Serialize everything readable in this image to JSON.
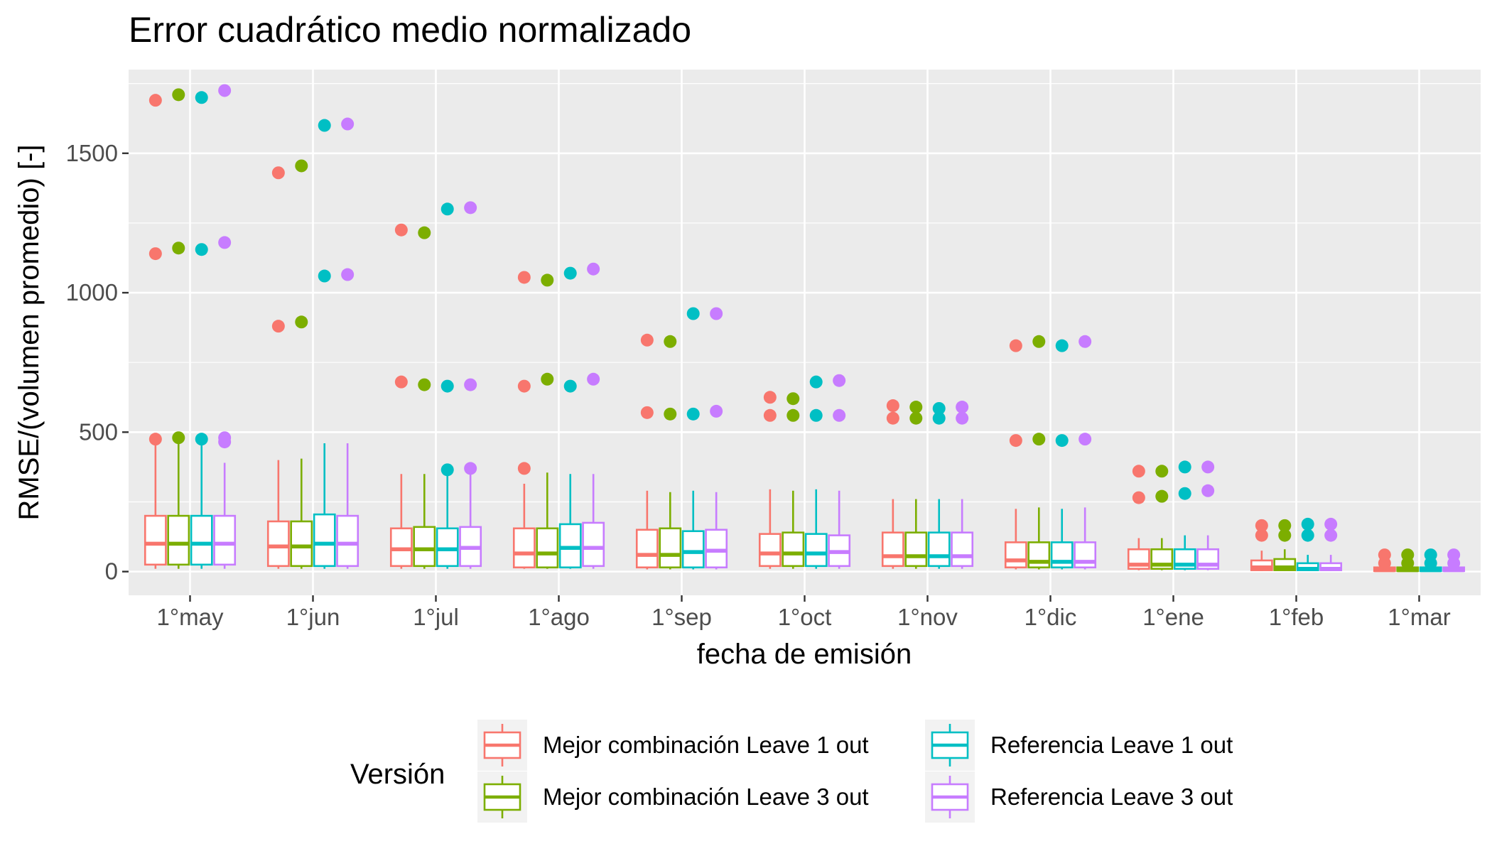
{
  "chart_data": {
    "type": "boxplot",
    "title": "Error cuadrático medio normalizado",
    "xlabel": "fecha de emisión",
    "ylabel": "RMSE/(volumen promedio) [-]",
    "ylim": [
      -85,
      1800
    ],
    "yticks": [
      0,
      500,
      1000,
      1500
    ],
    "categories": [
      "1°may",
      "1°jun",
      "1°jul",
      "1°ago",
      "1°sep",
      "1°oct",
      "1°nov",
      "1°dic",
      "1°ene",
      "1°feb",
      "1°mar"
    ],
    "grid": true,
    "legend": {
      "title": "Versión",
      "position": "bottom"
    },
    "series": [
      {
        "name": "Mejor combinación Leave 1 out",
        "color": "#F8766D",
        "boxes": [
          {
            "whisker_low": 10,
            "q1": 25,
            "median": 100,
            "q3": 200,
            "whisker_high": 475,
            "outliers": [
              475,
              1140,
              1690
            ]
          },
          {
            "whisker_low": 10,
            "q1": 20,
            "median": 90,
            "q3": 180,
            "whisker_high": 400,
            "outliers": [
              880,
              1430
            ]
          },
          {
            "whisker_low": 10,
            "q1": 20,
            "median": 80,
            "q3": 155,
            "whisker_high": 350,
            "outliers": [
              680,
              1225
            ]
          },
          {
            "whisker_low": 10,
            "q1": 15,
            "median": 65,
            "q3": 155,
            "whisker_high": 315,
            "outliers": [
              370,
              665,
              1055
            ]
          },
          {
            "whisker_low": 8,
            "q1": 15,
            "median": 60,
            "q3": 150,
            "whisker_high": 290,
            "outliers": [
              570,
              830
            ]
          },
          {
            "whisker_low": 10,
            "q1": 20,
            "median": 65,
            "q3": 135,
            "whisker_high": 295,
            "outliers": [
              560,
              625
            ]
          },
          {
            "whisker_low": 10,
            "q1": 20,
            "median": 55,
            "q3": 140,
            "whisker_high": 260,
            "outliers": [
              550,
              595
            ]
          },
          {
            "whisker_low": 8,
            "q1": 15,
            "median": 40,
            "q3": 105,
            "whisker_high": 225,
            "outliers": [
              470,
              810
            ]
          },
          {
            "whisker_low": 5,
            "q1": 10,
            "median": 25,
            "q3": 80,
            "whisker_high": 120,
            "outliers": [
              265,
              360
            ]
          },
          {
            "whisker_low": 2,
            "q1": 5,
            "median": 15,
            "q3": 40,
            "whisker_high": 75,
            "outliers": [
              130,
              165
            ]
          },
          {
            "whisker_low": 0,
            "q1": 2,
            "median": 5,
            "q3": 15,
            "whisker_high": 25,
            "outliers": [
              30,
              60
            ]
          }
        ]
      },
      {
        "name": "Mejor combinación Leave 3 out",
        "color": "#7CAE00",
        "boxes": [
          {
            "whisker_low": 10,
            "q1": 25,
            "median": 100,
            "q3": 200,
            "whisker_high": 480,
            "outliers": [
              480,
              1160,
              1710
            ]
          },
          {
            "whisker_low": 10,
            "q1": 20,
            "median": 90,
            "q3": 180,
            "whisker_high": 405,
            "outliers": [
              895,
              1455
            ]
          },
          {
            "whisker_low": 10,
            "q1": 20,
            "median": 80,
            "q3": 160,
            "whisker_high": 350,
            "outliers": [
              670,
              1215
            ]
          },
          {
            "whisker_low": 10,
            "q1": 15,
            "median": 65,
            "q3": 155,
            "whisker_high": 355,
            "outliers": [
              690,
              1045
            ]
          },
          {
            "whisker_low": 8,
            "q1": 15,
            "median": 60,
            "q3": 155,
            "whisker_high": 285,
            "outliers": [
              565,
              825
            ]
          },
          {
            "whisker_low": 10,
            "q1": 20,
            "median": 65,
            "q3": 140,
            "whisker_high": 290,
            "outliers": [
              560,
              620
            ]
          },
          {
            "whisker_low": 10,
            "q1": 20,
            "median": 55,
            "q3": 140,
            "whisker_high": 260,
            "outliers": [
              550,
              590
            ]
          },
          {
            "whisker_low": 8,
            "q1": 15,
            "median": 35,
            "q3": 105,
            "whisker_high": 230,
            "outliers": [
              475,
              825
            ]
          },
          {
            "whisker_low": 5,
            "q1": 10,
            "median": 25,
            "q3": 80,
            "whisker_high": 120,
            "outliers": [
              270,
              360
            ]
          },
          {
            "whisker_low": 2,
            "q1": 5,
            "median": 15,
            "q3": 45,
            "whisker_high": 80,
            "outliers": [
              130,
              165
            ]
          },
          {
            "whisker_low": 0,
            "q1": 2,
            "median": 5,
            "q3": 15,
            "whisker_high": 25,
            "outliers": [
              30,
              60
            ]
          }
        ]
      },
      {
        "name": "Referencia Leave 1 out",
        "color": "#00BFC4",
        "boxes": [
          {
            "whisker_low": 10,
            "q1": 25,
            "median": 100,
            "q3": 200,
            "whisker_high": 475,
            "outliers": [
              475,
              1155,
              1700
            ]
          },
          {
            "whisker_low": 10,
            "q1": 20,
            "median": 100,
            "q3": 205,
            "whisker_high": 460,
            "outliers": [
              1060,
              1600
            ]
          },
          {
            "whisker_low": 10,
            "q1": 20,
            "median": 80,
            "q3": 155,
            "whisker_high": 360,
            "outliers": [
              365,
              665,
              1300
            ]
          },
          {
            "whisker_low": 10,
            "q1": 15,
            "median": 85,
            "q3": 170,
            "whisker_high": 350,
            "outliers": [
              665,
              1070
            ]
          },
          {
            "whisker_low": 8,
            "q1": 15,
            "median": 70,
            "q3": 145,
            "whisker_high": 290,
            "outliers": [
              565,
              925
            ]
          },
          {
            "whisker_low": 10,
            "q1": 20,
            "median": 65,
            "q3": 135,
            "whisker_high": 295,
            "outliers": [
              560,
              680
            ]
          },
          {
            "whisker_low": 10,
            "q1": 20,
            "median": 55,
            "q3": 140,
            "whisker_high": 260,
            "outliers": [
              550,
              585
            ]
          },
          {
            "whisker_low": 8,
            "q1": 15,
            "median": 35,
            "q3": 105,
            "whisker_high": 225,
            "outliers": [
              470,
              810
            ]
          },
          {
            "whisker_low": 5,
            "q1": 10,
            "median": 25,
            "q3": 80,
            "whisker_high": 130,
            "outliers": [
              280,
              375
            ]
          },
          {
            "whisker_low": 2,
            "q1": 5,
            "median": 10,
            "q3": 30,
            "whisker_high": 60,
            "outliers": [
              130,
              170
            ]
          },
          {
            "whisker_low": 0,
            "q1": 2,
            "median": 5,
            "q3": 15,
            "whisker_high": 25,
            "outliers": [
              30,
              60
            ]
          }
        ]
      },
      {
        "name": "Referencia Leave 3 out",
        "color": "#C77CFF",
        "boxes": [
          {
            "whisker_low": 10,
            "q1": 25,
            "median": 100,
            "q3": 200,
            "whisker_high": 390,
            "outliers": [
              465,
              480,
              1180,
              1725
            ]
          },
          {
            "whisker_low": 10,
            "q1": 20,
            "median": 100,
            "q3": 200,
            "whisker_high": 460,
            "outliers": [
              1065,
              1605
            ]
          },
          {
            "whisker_low": 10,
            "q1": 20,
            "median": 85,
            "q3": 160,
            "whisker_high": 365,
            "outliers": [
              370,
              670,
              1305
            ]
          },
          {
            "whisker_low": 10,
            "q1": 20,
            "median": 85,
            "q3": 175,
            "whisker_high": 350,
            "outliers": [
              690,
              1085
            ]
          },
          {
            "whisker_low": 8,
            "q1": 15,
            "median": 75,
            "q3": 150,
            "whisker_high": 285,
            "outliers": [
              575,
              925
            ]
          },
          {
            "whisker_low": 10,
            "q1": 20,
            "median": 70,
            "q3": 130,
            "whisker_high": 290,
            "outliers": [
              560,
              685
            ]
          },
          {
            "whisker_low": 10,
            "q1": 20,
            "median": 55,
            "q3": 140,
            "whisker_high": 260,
            "outliers": [
              550,
              590
            ]
          },
          {
            "whisker_low": 8,
            "q1": 15,
            "median": 35,
            "q3": 105,
            "whisker_high": 230,
            "outliers": [
              475,
              825
            ]
          },
          {
            "whisker_low": 5,
            "q1": 10,
            "median": 25,
            "q3": 80,
            "whisker_high": 130,
            "outliers": [
              290,
              375
            ]
          },
          {
            "whisker_low": 2,
            "q1": 5,
            "median": 10,
            "q3": 30,
            "whisker_high": 60,
            "outliers": [
              130,
              170
            ]
          },
          {
            "whisker_low": 0,
            "q1": 2,
            "median": 5,
            "q3": 15,
            "whisker_high": 25,
            "outliers": [
              30,
              60
            ]
          }
        ]
      }
    ]
  }
}
